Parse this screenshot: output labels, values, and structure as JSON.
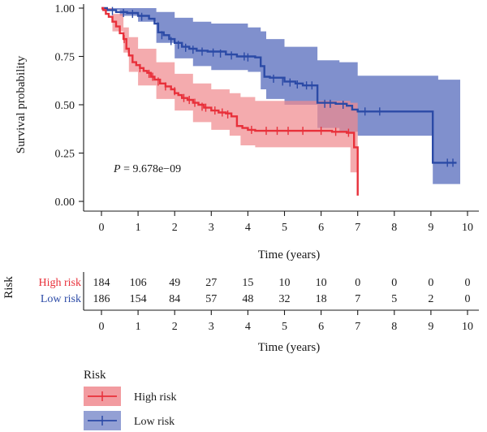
{
  "chart_data": {
    "type": "line",
    "ylabel": "Survival probability",
    "xlabel": "Time (years)",
    "xlim": [
      0,
      10
    ],
    "ylim": [
      0,
      1
    ],
    "x_ticks": [
      "0",
      "1",
      "2",
      "3",
      "4",
      "5",
      "6",
      "7",
      "8",
      "9",
      "10"
    ],
    "y_ticks": [
      "0.00",
      "0.25",
      "0.50",
      "0.75",
      "1.00"
    ],
    "pvalue_prefix": "P",
    "pvalue_value": " = 9.678e−09",
    "grid": false,
    "series": [
      {
        "name": "High risk",
        "color": "#e8303a",
        "ci_color": "#f08a8f",
        "steps": [
          [
            0,
            1.0
          ],
          [
            0.05,
            0.99
          ],
          [
            0.12,
            0.97
          ],
          [
            0.2,
            0.955
          ],
          [
            0.3,
            0.93
          ],
          [
            0.4,
            0.905
          ],
          [
            0.5,
            0.87
          ],
          [
            0.6,
            0.84
          ],
          [
            0.68,
            0.79
          ],
          [
            0.75,
            0.755
          ],
          [
            0.85,
            0.72
          ],
          [
            0.95,
            0.705
          ],
          [
            1.05,
            0.69
          ],
          [
            1.15,
            0.675
          ],
          [
            1.25,
            0.665
          ],
          [
            1.35,
            0.645
          ],
          [
            1.45,
            0.63
          ],
          [
            1.6,
            0.61
          ],
          [
            1.75,
            0.595
          ],
          [
            1.9,
            0.58
          ],
          [
            2.0,
            0.56
          ],
          [
            2.1,
            0.55
          ],
          [
            2.2,
            0.535
          ],
          [
            2.35,
            0.525
          ],
          [
            2.5,
            0.51
          ],
          [
            2.65,
            0.5
          ],
          [
            2.8,
            0.485
          ],
          [
            3.0,
            0.47
          ],
          [
            3.2,
            0.46
          ],
          [
            3.4,
            0.455
          ],
          [
            3.55,
            0.44
          ],
          [
            3.7,
            0.39
          ],
          [
            3.85,
            0.38
          ],
          [
            4.0,
            0.37
          ],
          [
            4.2,
            0.365
          ],
          [
            6.0,
            0.365
          ],
          [
            6.3,
            0.36
          ],
          [
            6.7,
            0.355
          ],
          [
            6.9,
            0.28
          ],
          [
            7.0,
            0.03
          ]
        ],
        "ci_upper": [
          [
            0,
            1.0
          ],
          [
            0.3,
            0.97
          ],
          [
            0.6,
            0.9
          ],
          [
            0.75,
            0.85
          ],
          [
            1.0,
            0.79
          ],
          [
            1.5,
            0.72
          ],
          [
            2.0,
            0.66
          ],
          [
            2.5,
            0.61
          ],
          [
            3.0,
            0.58
          ],
          [
            3.5,
            0.56
          ],
          [
            3.8,
            0.54
          ],
          [
            4.2,
            0.52
          ],
          [
            6.0,
            0.52
          ],
          [
            6.8,
            0.51
          ],
          [
            7.0,
            0.5
          ]
        ],
        "ci_lower": [
          [
            0,
            0.99
          ],
          [
            0.3,
            0.88
          ],
          [
            0.6,
            0.77
          ],
          [
            0.75,
            0.67
          ],
          [
            1.0,
            0.6
          ],
          [
            1.5,
            0.53
          ],
          [
            2.0,
            0.47
          ],
          [
            2.5,
            0.41
          ],
          [
            3.0,
            0.37
          ],
          [
            3.5,
            0.34
          ],
          [
            3.8,
            0.29
          ],
          [
            4.2,
            0.28
          ],
          [
            6.0,
            0.28
          ],
          [
            6.8,
            0.15
          ],
          [
            7.0,
            0.15
          ]
        ],
        "censors": [
          [
            0.62,
            0.84
          ],
          [
            1.05,
            0.69
          ],
          [
            1.3,
            0.66
          ],
          [
            1.4,
            0.645
          ],
          [
            1.55,
            0.62
          ],
          [
            1.75,
            0.595
          ],
          [
            2.0,
            0.57
          ],
          [
            2.25,
            0.535
          ],
          [
            2.4,
            0.525
          ],
          [
            2.55,
            0.51
          ],
          [
            2.75,
            0.49
          ],
          [
            2.85,
            0.485
          ],
          [
            3.1,
            0.47
          ],
          [
            3.3,
            0.46
          ],
          [
            3.45,
            0.45
          ],
          [
            4.1,
            0.37
          ],
          [
            4.5,
            0.365
          ],
          [
            4.8,
            0.365
          ],
          [
            5.1,
            0.365
          ],
          [
            5.5,
            0.365
          ],
          [
            6.0,
            0.365
          ],
          [
            6.4,
            0.36
          ],
          [
            6.75,
            0.355
          ]
        ],
        "risk_counts": [
          "184",
          "106",
          "49",
          "27",
          "15",
          "10",
          "10",
          "0",
          "0",
          "0",
          "0"
        ]
      },
      {
        "name": "Low risk",
        "color": "#2b4aa6",
        "ci_color": "#6a7cc4",
        "steps": [
          [
            0,
            1.0
          ],
          [
            0.15,
            0.99
          ],
          [
            0.4,
            0.98
          ],
          [
            0.7,
            0.975
          ],
          [
            1.0,
            0.96
          ],
          [
            1.3,
            0.945
          ],
          [
            1.45,
            0.92
          ],
          [
            1.55,
            0.875
          ],
          [
            1.7,
            0.86
          ],
          [
            1.85,
            0.84
          ],
          [
            2.0,
            0.82
          ],
          [
            2.2,
            0.8
          ],
          [
            2.4,
            0.79
          ],
          [
            2.6,
            0.78
          ],
          [
            2.9,
            0.775
          ],
          [
            3.4,
            0.76
          ],
          [
            3.7,
            0.75
          ],
          [
            4.2,
            0.745
          ],
          [
            4.35,
            0.7
          ],
          [
            4.45,
            0.645
          ],
          [
            4.6,
            0.64
          ],
          [
            5.0,
            0.62
          ],
          [
            5.3,
            0.61
          ],
          [
            5.5,
            0.6
          ],
          [
            5.9,
            0.51
          ],
          [
            6.4,
            0.505
          ],
          [
            6.7,
            0.495
          ],
          [
            6.85,
            0.475
          ],
          [
            7.0,
            0.465
          ],
          [
            9.0,
            0.465
          ],
          [
            9.05,
            0.2
          ],
          [
            9.7,
            0.2
          ]
        ],
        "ci_upper": [
          [
            0,
            1.0
          ],
          [
            1.0,
            1.0
          ],
          [
            1.5,
            0.98
          ],
          [
            2.0,
            0.95
          ],
          [
            2.5,
            0.93
          ],
          [
            3.0,
            0.92
          ],
          [
            4.0,
            0.9
          ],
          [
            4.35,
            0.88
          ],
          [
            4.5,
            0.84
          ],
          [
            5.0,
            0.8
          ],
          [
            5.9,
            0.73
          ],
          [
            6.5,
            0.72
          ],
          [
            7.0,
            0.65
          ],
          [
            8.0,
            0.65
          ],
          [
            9.0,
            0.65
          ],
          [
            9.2,
            0.63
          ],
          [
            9.8,
            0.63
          ]
        ],
        "ci_lower": [
          [
            0,
            0.99
          ],
          [
            0.5,
            0.96
          ],
          [
            1.0,
            0.93
          ],
          [
            1.5,
            0.82
          ],
          [
            2.0,
            0.74
          ],
          [
            2.5,
            0.7
          ],
          [
            3.0,
            0.68
          ],
          [
            4.0,
            0.67
          ],
          [
            4.35,
            0.58
          ],
          [
            4.5,
            0.53
          ],
          [
            5.0,
            0.5
          ],
          [
            5.9,
            0.38
          ],
          [
            6.5,
            0.36
          ],
          [
            7.0,
            0.34
          ],
          [
            8.0,
            0.34
          ],
          [
            9.0,
            0.34
          ],
          [
            9.05,
            0.09
          ],
          [
            9.8,
            0.09
          ]
        ],
        "censors": [
          [
            0.3,
            0.985
          ],
          [
            0.6,
            0.975
          ],
          [
            0.85,
            0.97
          ],
          [
            1.1,
            0.955
          ],
          [
            1.65,
            0.86
          ],
          [
            1.9,
            0.83
          ],
          [
            2.1,
            0.81
          ],
          [
            2.3,
            0.795
          ],
          [
            2.5,
            0.785
          ],
          [
            2.75,
            0.775
          ],
          [
            3.05,
            0.77
          ],
          [
            3.25,
            0.765
          ],
          [
            3.55,
            0.755
          ],
          [
            3.9,
            0.75
          ],
          [
            4.0,
            0.745
          ],
          [
            4.7,
            0.635
          ],
          [
            4.95,
            0.62
          ],
          [
            5.15,
            0.615
          ],
          [
            5.35,
            0.605
          ],
          [
            5.6,
            0.6
          ],
          [
            5.75,
            0.6
          ],
          [
            6.1,
            0.505
          ],
          [
            6.25,
            0.505
          ],
          [
            6.6,
            0.5
          ],
          [
            7.2,
            0.465
          ],
          [
            7.6,
            0.465
          ],
          [
            9.45,
            0.2
          ],
          [
            9.6,
            0.2
          ]
        ],
        "risk_counts": [
          "186",
          "154",
          "84",
          "57",
          "48",
          "32",
          "18",
          "7",
          "5",
          "2",
          "0"
        ]
      }
    ],
    "risk_table": {
      "title": "Risk",
      "xlabel": "Time (years)"
    },
    "legend": {
      "title": "Risk",
      "position": "bottom-left"
    }
  }
}
